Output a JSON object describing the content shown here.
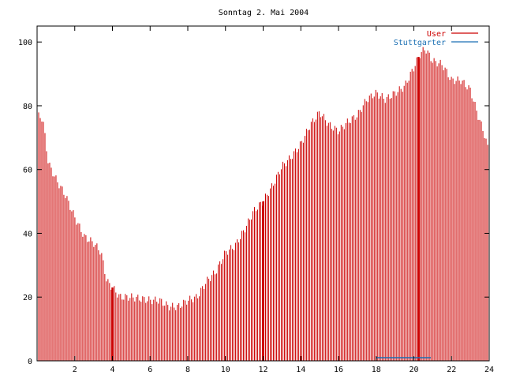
{
  "chart_data": {
    "type": "bar",
    "title": "Sonntag 2. Mai 2004",
    "xlabel": "",
    "ylabel": "",
    "xlim": [
      0,
      24
    ],
    "ylim": [
      0,
      105
    ],
    "x_ticks": [
      2,
      4,
      6,
      8,
      10,
      12,
      14,
      16,
      18,
      20,
      22,
      24
    ],
    "y_ticks": [
      0,
      20,
      40,
      60,
      80,
      100
    ],
    "grid": false,
    "legend_position": "top-right",
    "colors": {
      "User": "#cc0000",
      "Stuttgarter": "#1a6fb3",
      "axis": "#000000"
    },
    "series": [
      {
        "name": "User",
        "anchors": [
          [
            0.0,
            77
          ],
          [
            0.3,
            76
          ],
          [
            0.6,
            62
          ],
          [
            1.0,
            57
          ],
          [
            1.5,
            52
          ],
          [
            2.0,
            45
          ],
          [
            2.5,
            39
          ],
          [
            3.0,
            37
          ],
          [
            3.4,
            34
          ],
          [
            3.7,
            25
          ],
          [
            4.0,
            23
          ],
          [
            4.4,
            20
          ],
          [
            5.0,
            20
          ],
          [
            6.0,
            19
          ],
          [
            6.5,
            19
          ],
          [
            7.0,
            17
          ],
          [
            7.5,
            17
          ],
          [
            8.0,
            19
          ],
          [
            8.5,
            20
          ],
          [
            9.0,
            25
          ],
          [
            9.5,
            28
          ],
          [
            10.0,
            34
          ],
          [
            10.5,
            36
          ],
          [
            11.0,
            41
          ],
          [
            11.5,
            47
          ],
          [
            12.0,
            50
          ],
          [
            12.5,
            55
          ],
          [
            13.0,
            61
          ],
          [
            13.5,
            64
          ],
          [
            14.0,
            68
          ],
          [
            14.5,
            74
          ],
          [
            15.0,
            78
          ],
          [
            15.5,
            74
          ],
          [
            16.0,
            72
          ],
          [
            16.5,
            75
          ],
          [
            17.0,
            77
          ],
          [
            17.5,
            82
          ],
          [
            18.0,
            84
          ],
          [
            18.5,
            82
          ],
          [
            19.0,
            84
          ],
          [
            19.5,
            86
          ],
          [
            20.0,
            92
          ],
          [
            20.3,
            96
          ],
          [
            20.6,
            98
          ],
          [
            21.0,
            94
          ],
          [
            21.5,
            93
          ],
          [
            22.0,
            88
          ],
          [
            22.5,
            88
          ],
          [
            23.0,
            85
          ],
          [
            23.4,
            77
          ],
          [
            23.7,
            72
          ],
          [
            24.0,
            65
          ]
        ],
        "highlight_x": [
          4.0,
          12.0,
          20.25
        ]
      },
      {
        "name": "Stuttgarter",
        "segments": [
          [
            18.0,
            20.9,
            1
          ]
        ]
      }
    ]
  }
}
